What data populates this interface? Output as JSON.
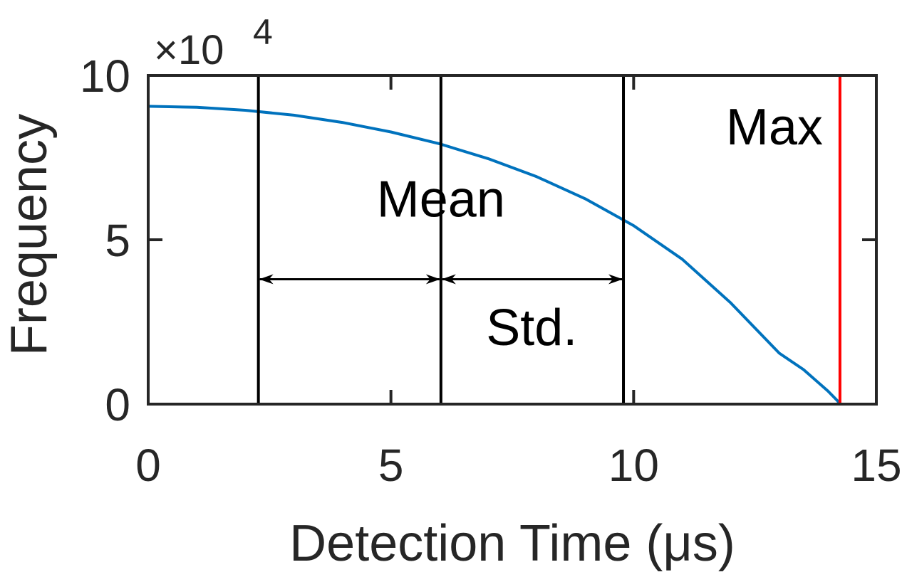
{
  "chart_data": {
    "type": "line",
    "xlabel": "Detection Time (μs)",
    "ylabel": "Frequency",
    "y_exponent_label": "×10",
    "y_exponent_power": "4",
    "xlim": [
      0,
      15
    ],
    "ylim": [
      0,
      10
    ],
    "x_ticks": [
      0,
      5,
      10,
      15
    ],
    "x_tick_labels": [
      "0",
      "5",
      "10",
      "15"
    ],
    "y_ticks": [
      0,
      5,
      10
    ],
    "y_tick_labels": [
      "0",
      "5",
      "10"
    ],
    "grid": false,
    "series": [
      {
        "color": "#0072BD",
        "x": [
          0,
          1,
          2,
          3,
          4,
          5,
          6,
          7,
          8,
          9,
          10,
          11,
          12,
          13,
          13.5,
          14,
          14.2,
          14.25
        ],
        "y": [
          9.06,
          9.03,
          8.94,
          8.79,
          8.57,
          8.28,
          7.92,
          7.47,
          6.92,
          6.25,
          5.43,
          4.41,
          3.08,
          1.55,
          1.05,
          0.4,
          0.1,
          0.0
        ]
      }
    ],
    "vlines": [
      {
        "x": 2.27,
        "color": "#000000"
      },
      {
        "x": 6.03,
        "color": "#000000"
      },
      {
        "x": 9.79,
        "color": "#000000"
      },
      {
        "x": 14.25,
        "color": "#FF0000"
      }
    ],
    "arrows": [
      {
        "x_start": 2.27,
        "x_end": 6.03,
        "y": 3.8
      },
      {
        "x_start": 6.03,
        "x_end": 9.79,
        "y": 3.8
      }
    ],
    "annotations": [
      {
        "text": "Mean",
        "x": 6.03,
        "y": 5.7,
        "anchor": "middle"
      },
      {
        "text": "Std.",
        "x": 7.9,
        "y": 1.8,
        "anchor": "middle"
      },
      {
        "text": "Max",
        "x": 12.9,
        "y": 7.9,
        "anchor": "middle"
      }
    ],
    "colors": {
      "axis": "#262626",
      "line": "#0072BD",
      "max_line": "#FF0000",
      "vline": "#000000"
    }
  }
}
